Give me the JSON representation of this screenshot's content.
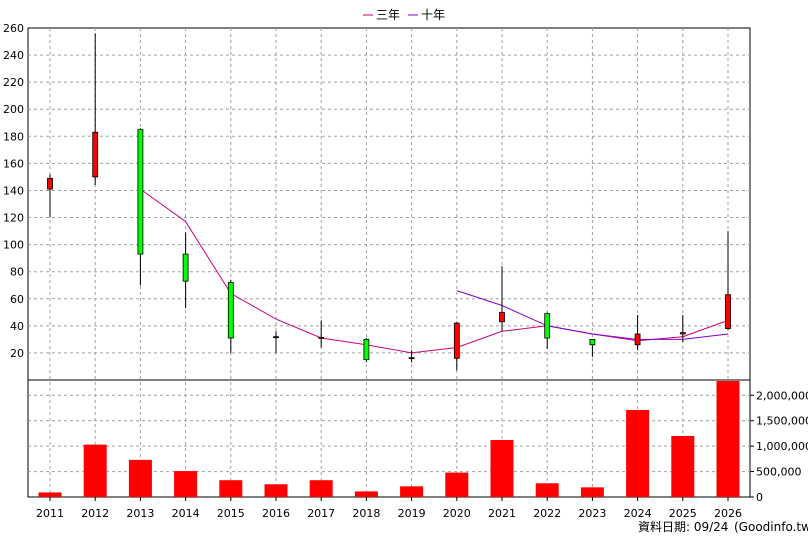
{
  "chart_data": {
    "type": "candlestick+line+bar",
    "years": [
      "2011",
      "2012",
      "2013",
      "2014",
      "2015",
      "2016",
      "2017",
      "2018",
      "2019",
      "2020",
      "2021",
      "2022",
      "2023",
      "2024",
      "2025",
      "2026"
    ],
    "price_axis": {
      "ylim": [
        0,
        260
      ],
      "ticks": [
        20,
        40,
        60,
        80,
        100,
        120,
        140,
        160,
        180,
        200,
        220,
        240,
        260
      ]
    },
    "candles": [
      {
        "year": "2011",
        "open": 141,
        "close": 149,
        "high": 152,
        "low": 120
      },
      {
        "year": "2012",
        "open": 150,
        "close": 183,
        "high": 256,
        "low": 144
      },
      {
        "year": "2013",
        "open": 185,
        "close": 93,
        "high": 186,
        "low": 70
      },
      {
        "year": "2014",
        "open": 93,
        "close": 73,
        "high": 109,
        "low": 53
      },
      {
        "year": "2015",
        "open": 72,
        "close": 31,
        "high": 74,
        "low": 20
      },
      {
        "year": "2016",
        "open": 31.5,
        "close": 32,
        "high": 36,
        "low": 20
      },
      {
        "year": "2017",
        "open": 31,
        "close": 31.5,
        "high": 44,
        "low": 24
      },
      {
        "year": "2018",
        "open": 30,
        "close": 15,
        "high": 31,
        "low": 13
      },
      {
        "year": "2019",
        "open": 16,
        "close": 16.5,
        "high": 22,
        "low": 13
      },
      {
        "year": "2020",
        "open": 16,
        "close": 42,
        "high": 43,
        "low": 7
      },
      {
        "year": "2021",
        "open": 43,
        "close": 50,
        "high": 84,
        "low": 36
      },
      {
        "year": "2022",
        "open": 49,
        "close": 31,
        "high": 50,
        "low": 23
      },
      {
        "year": "2023",
        "open": 30,
        "close": 26,
        "high": 30,
        "low": 17
      },
      {
        "year": "2024",
        "open": 26,
        "close": 34,
        "high": 48,
        "low": 22
      },
      {
        "year": "2025",
        "open": 34,
        "close": 35,
        "high": 48,
        "low": 28
      },
      {
        "year": "2026",
        "open": 38,
        "close": 63,
        "high": 110,
        "low": 37
      }
    ],
    "series": [
      {
        "name": "三年",
        "color": "#cc0077",
        "points": [
          [
            "2013",
            141
          ],
          [
            "2014",
            117
          ],
          [
            "2015",
            64
          ],
          [
            "2016",
            45
          ],
          [
            "2017",
            31
          ],
          [
            "2018",
            26
          ],
          [
            "2019",
            20
          ],
          [
            "2020",
            24
          ],
          [
            "2021",
            36
          ],
          [
            "2022",
            40
          ],
          [
            "2023",
            34
          ],
          [
            "2024",
            29
          ],
          [
            "2025",
            32
          ],
          [
            "2026",
            44
          ]
        ]
      },
      {
        "name": "十年",
        "color": "#8800cc",
        "points": [
          [
            "2020",
            66
          ],
          [
            "2021",
            55
          ],
          [
            "2022",
            40
          ],
          [
            "2023",
            34
          ],
          [
            "2024",
            30
          ],
          [
            "2025",
            30
          ],
          [
            "2026",
            34
          ]
        ]
      }
    ],
    "volume_axis": {
      "ylim": [
        0,
        2300000
      ],
      "ticks": [
        "0",
        "500,000",
        "1,000,000",
        "1,500,000",
        "2,000,000"
      ],
      "tick_values": [
        0,
        500000,
        1000000,
        1500000,
        2000000
      ]
    },
    "volume": [
      90000,
      1030000,
      730000,
      510000,
      330000,
      250000,
      330000,
      110000,
      210000,
      480000,
      1120000,
      270000,
      190000,
      1710000,
      1200000,
      2280000
    ],
    "up_color": "#ff0000",
    "down_color": "#00ff00",
    "volume_color": "#ff0000",
    "legend_position": "top-center",
    "grid": true
  },
  "legend": {
    "three_year": "三年",
    "ten_year": "十年"
  },
  "footer": {
    "date_label": "資料日期: 09/24",
    "source": "(Goodinfo.tw)"
  }
}
